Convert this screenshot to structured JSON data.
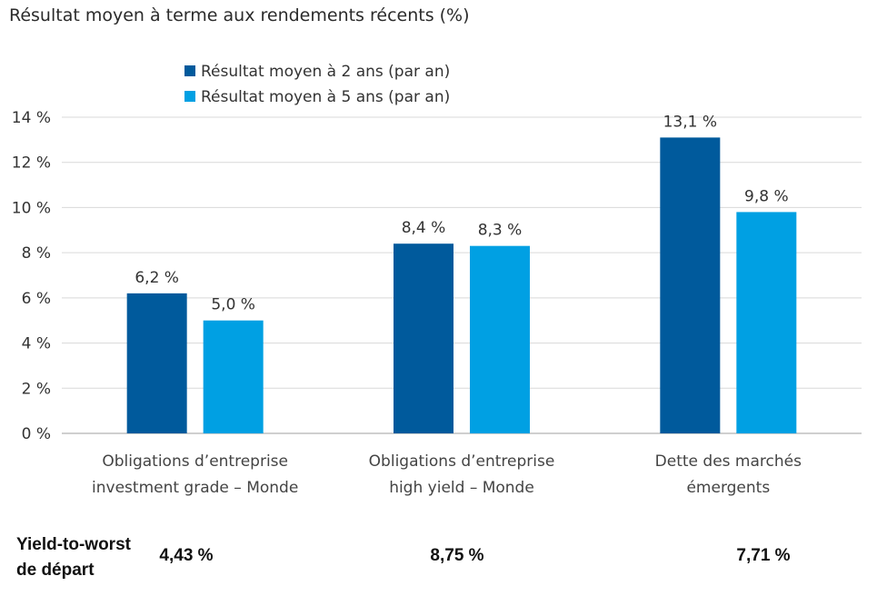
{
  "chart_data": {
    "type": "bar",
    "title": "Résultat moyen à terme aux rendements récents (%)",
    "categories": [
      [
        "Obligations d’entreprise",
        "investment grade – Monde"
      ],
      [
        "Obligations d’entreprise",
        "high yield – Monde"
      ],
      [
        "Dette des marchés",
        "émergents"
      ]
    ],
    "series": [
      {
        "name": "Résultat moyen à 2 ans (par an)",
        "values": [
          6.2,
          8.4,
          13.1
        ],
        "labels": [
          "6,2 %",
          "8,4 %",
          "13,1 %"
        ],
        "color": "#005a9c"
      },
      {
        "name": "Résultat moyen à 5 ans (par an)",
        "values": [
          5.0,
          8.3,
          9.8
        ],
        "labels": [
          "5,0 %",
          "8,3 %",
          "9,8 %"
        ],
        "color": "#00a0e3"
      }
    ],
    "ylim": [
      0,
      14
    ],
    "yticks": [
      0,
      2,
      4,
      6,
      8,
      10,
      12,
      14
    ],
    "ytick_labels": [
      "0 %",
      "2 %",
      "4 %",
      "6 %",
      "8 %",
      "10 %",
      "12 %",
      "14 %"
    ],
    "grid": true,
    "legend": "top-left"
  },
  "yield_to_worst": {
    "label_line1": "Yield-to-worst",
    "label_line2": "de départ",
    "values": [
      "4,43 %",
      "8,75 %",
      "7,71 %"
    ]
  },
  "colors": {
    "gridline": "#d9d9d9",
    "axis": "#bfbfbf"
  }
}
